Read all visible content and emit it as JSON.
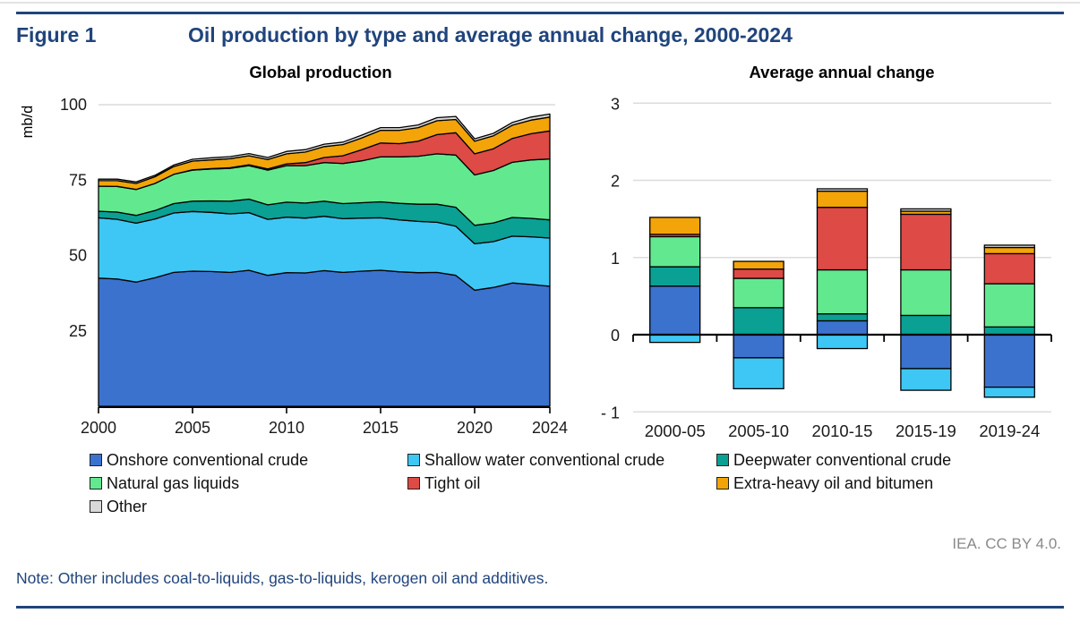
{
  "header": {
    "figure_label": "Figure 1",
    "figure_title": "Oil production by type and average annual change, 2000-2024",
    "accent_color": "#20447C"
  },
  "footer": {
    "credit": "IEA. CC BY 4.0.",
    "note": "Note: Other includes coal-to-liquids, gas-to-liquids, kerogen oil and additives."
  },
  "colors": {
    "onshore": "#3B72CE",
    "shallow": "#3EC7F4",
    "deepwater": "#0AA094",
    "ngl": "#62E98F",
    "tight": "#DE4A45",
    "extraheavy": "#F2A408",
    "other": "#D9D9D9",
    "gridline": "#DCDCDC",
    "axis": "#000000"
  },
  "legend": {
    "items": [
      {
        "label": "Onshore conventional crude",
        "color": "#3B72CE"
      },
      {
        "label": "Shallow water conventional crude",
        "color": "#3EC7F4"
      },
      {
        "label": "Deepwater conventional crude",
        "color": "#0AA094"
      },
      {
        "label": "Natural gas liquids",
        "color": "#62E98F"
      },
      {
        "label": "Tight oil",
        "color": "#DE4A45"
      },
      {
        "label": "Extra-heavy oil and bitumen",
        "color": "#F2A408"
      },
      {
        "label": "Other",
        "color": "#D9D9D9"
      }
    ]
  },
  "chart_data": [
    {
      "type": "area",
      "stacked": true,
      "title": "Global production",
      "ylabel": "mb/d",
      "ylim": [
        0,
        100
      ],
      "yticks": [
        25,
        50,
        75,
        100
      ],
      "gridlines": [
        100
      ],
      "x": [
        2000,
        2001,
        2002,
        2003,
        2004,
        2005,
        2006,
        2007,
        2008,
        2009,
        2010,
        2011,
        2012,
        2013,
        2014,
        2015,
        2016,
        2017,
        2018,
        2019,
        2020,
        2021,
        2022,
        2023,
        2024
      ],
      "xticks": [
        2000,
        2005,
        2010,
        2015,
        2020,
        2024
      ],
      "series": [
        {
          "id": "onshore",
          "name": "Onshore conventional crude",
          "color": "#3B72CE",
          "values": [
            42.5,
            42.2,
            41.2,
            42.6,
            44.4,
            44.8,
            44.7,
            44.4,
            45.1,
            43.4,
            44.3,
            44.2,
            45.0,
            44.4,
            44.8,
            45.1,
            44.6,
            44.3,
            44.4,
            43.4,
            38.5,
            39.4,
            40.9,
            40.4,
            39.8
          ]
        },
        {
          "id": "shallow",
          "name": "Shallow water conventional crude",
          "color": "#3EC7F4",
          "values": [
            20.0,
            19.8,
            19.5,
            19.5,
            19.7,
            19.8,
            19.6,
            19.4,
            19.1,
            18.6,
            18.4,
            18.2,
            18.0,
            17.8,
            17.6,
            17.4,
            17.2,
            17.0,
            16.6,
            16.3,
            15.4,
            15.2,
            15.5,
            15.8,
            16.0
          ]
        },
        {
          "id": "deepwater",
          "name": "Deepwater conventional crude",
          "color": "#0AA094",
          "values": [
            2.2,
            2.4,
            2.6,
            2.8,
            3.1,
            3.4,
            3.8,
            4.2,
            4.5,
            4.8,
            5.0,
            5.0,
            5.0,
            5.0,
            5.1,
            5.3,
            5.5,
            5.7,
            6.0,
            6.3,
            6.1,
            6.2,
            6.2,
            6.1,
            6.0
          ]
        },
        {
          "id": "ngl",
          "name": "Natural gas liquids",
          "color": "#62E98F",
          "values": [
            8.3,
            8.5,
            8.6,
            9.0,
            9.7,
            10.3,
            10.6,
            10.9,
            11.1,
            11.5,
            12.1,
            12.4,
            12.8,
            13.3,
            13.9,
            14.9,
            15.4,
            15.9,
            16.7,
            17.3,
            16.7,
            17.4,
            18.3,
            19.4,
            20.2
          ]
        },
        {
          "id": "tight",
          "name": "Tight oil",
          "color": "#DE4A45",
          "values": [
            0.0,
            0.0,
            0.0,
            0.0,
            0.0,
            0.1,
            0.1,
            0.2,
            0.3,
            0.4,
            0.6,
            1.0,
            1.7,
            2.6,
            3.7,
            4.6,
            4.4,
            5.0,
            6.4,
            7.4,
            7.0,
            7.2,
            7.9,
            8.7,
            9.3
          ]
        },
        {
          "id": "extraheavy",
          "name": "Extra-heavy oil and bitumen",
          "color": "#F2A408",
          "values": [
            1.8,
            1.9,
            2.0,
            2.2,
            2.6,
            2.9,
            2.9,
            3.0,
            3.0,
            3.1,
            3.3,
            3.5,
            3.6,
            3.7,
            3.9,
            4.2,
            4.4,
            4.5,
            4.6,
            4.4,
            4.2,
            4.3,
            4.4,
            4.5,
            4.6
          ]
        },
        {
          "id": "other",
          "name": "Other",
          "color": "#D9D9D9",
          "values": [
            0.5,
            0.5,
            0.5,
            0.5,
            0.5,
            0.6,
            0.7,
            0.7,
            0.7,
            0.7,
            0.8,
            0.8,
            0.8,
            0.8,
            0.9,
            0.9,
            0.9,
            0.9,
            1.0,
            1.0,
            0.8,
            0.8,
            0.9,
            1.0,
            1.0
          ]
        }
      ]
    },
    {
      "type": "bar",
      "stacked": true,
      "title": "Average annual change",
      "ylim": [
        -1,
        3
      ],
      "yticks": [
        {
          "v": 3,
          "label": "3"
        },
        {
          "v": 2,
          "label": "2"
        },
        {
          "v": 1,
          "label": "1"
        },
        {
          "v": 0,
          "label": "0"
        },
        {
          "v": -1,
          "label": "- 1"
        }
      ],
      "gridlines": [
        3,
        2,
        1,
        -1
      ],
      "categories": [
        "2000-05",
        "2005-10",
        "2010-15",
        "2015-19",
        "2019-24"
      ],
      "series": [
        {
          "id": "onshore",
          "name": "Onshore conventional crude",
          "color": "#3B72CE",
          "values": [
            0.63,
            -0.3,
            0.18,
            -0.44,
            -0.68
          ]
        },
        {
          "id": "shallow",
          "name": "Shallow water conventional crude",
          "color": "#3EC7F4",
          "values": [
            -0.1,
            -0.4,
            -0.18,
            -0.28,
            -0.13
          ]
        },
        {
          "id": "deepwater",
          "name": "Deepwater conventional crude",
          "color": "#0AA094",
          "values": [
            0.25,
            0.35,
            0.09,
            0.25,
            0.1
          ]
        },
        {
          "id": "ngl",
          "name": "Natural gas liquids",
          "color": "#62E98F",
          "values": [
            0.39,
            0.38,
            0.57,
            0.59,
            0.56
          ]
        },
        {
          "id": "tight",
          "name": "Tight oil",
          "color": "#DE4A45",
          "values": [
            0.03,
            0.12,
            0.81,
            0.72,
            0.39
          ]
        },
        {
          "id": "extraheavy",
          "name": "Extra-heavy oil and bitumen",
          "color": "#F2A408",
          "values": [
            0.22,
            0.1,
            0.21,
            0.04,
            0.08
          ]
        },
        {
          "id": "other",
          "name": "Other",
          "color": "#D9D9D9",
          "values": [
            0.0,
            0.0,
            0.03,
            0.03,
            0.03
          ]
        }
      ]
    }
  ]
}
